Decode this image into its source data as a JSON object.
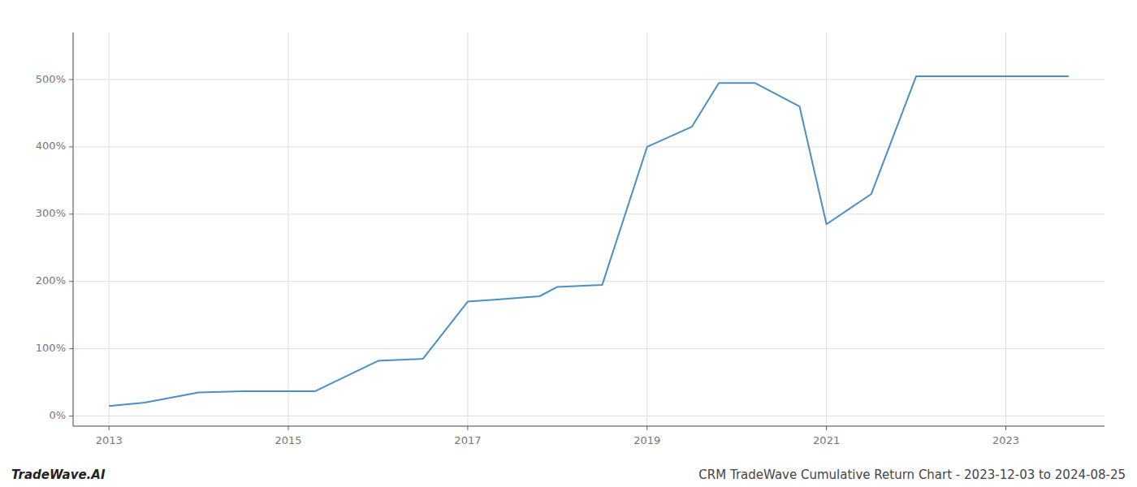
{
  "chart_data": {
    "type": "line",
    "title": "CRM TradeWave Cumulative Return Chart - 2023-12-03 to 2024-08-25",
    "annotations": [
      "TradeWave.AI"
    ],
    "x": [
      2013.0,
      2013.4,
      2014.0,
      2014.5,
      2015.0,
      2015.3,
      2016.0,
      2016.5,
      2017.0,
      2017.3,
      2017.8,
      2018.0,
      2018.5,
      2019.0,
      2019.5,
      2019.8,
      2020.2,
      2020.7,
      2021.0,
      2021.5,
      2022.0,
      2022.5,
      2023.0,
      2023.7
    ],
    "values": [
      15,
      20,
      35,
      37,
      37,
      37,
      82,
      85,
      170,
      173,
      178,
      192,
      195,
      400,
      430,
      495,
      495,
      460,
      285,
      330,
      505,
      505,
      505,
      505
    ],
    "color": "#4a90c4",
    "xlim": [
      2012.6,
      2024.1
    ],
    "ylim": [
      -15,
      570
    ],
    "xticks": [
      2013,
      2015,
      2017,
      2019,
      2021,
      2023
    ],
    "yticks": [
      {
        "value": 0,
        "label": "0%"
      },
      {
        "value": 100,
        "label": "100%"
      },
      {
        "value": 200,
        "label": "200%"
      },
      {
        "value": 300,
        "label": "300%"
      },
      {
        "value": 400,
        "label": "400%"
      },
      {
        "value": 500,
        "label": "500%"
      }
    ],
    "grid": true
  }
}
